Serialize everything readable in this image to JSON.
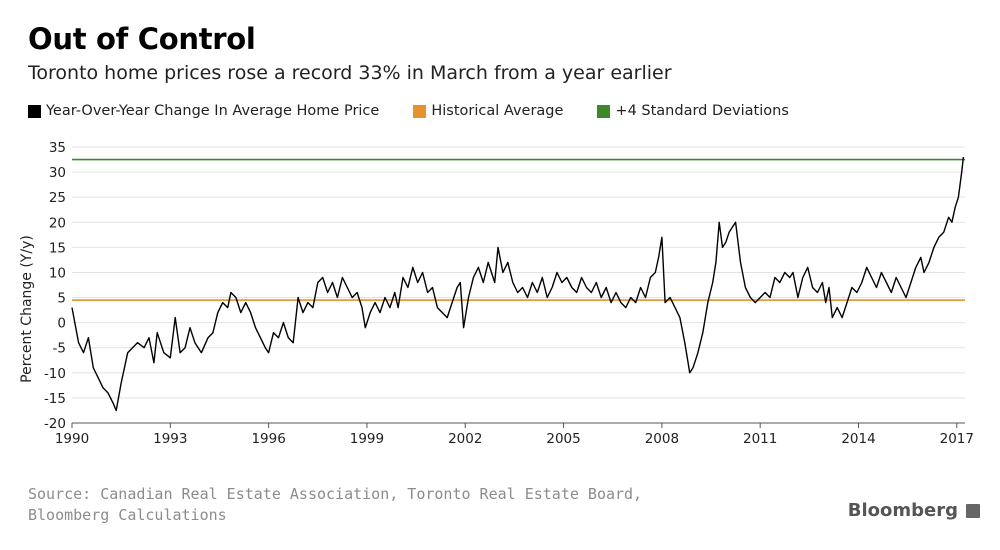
{
  "header": {
    "title": "Out of Control",
    "subtitle": "Toronto home prices rose a record 33% in March from a year earlier"
  },
  "legend": [
    {
      "label": "Year-Over-Year Change In Average Home Price",
      "color": "#000000"
    },
    {
      "label": "Historical Average",
      "color": "#e8902a"
    },
    {
      "label": "+4 Standard Deviations",
      "color": "#3a8a2a"
    }
  ],
  "footer": {
    "source_line1": "Source: Canadian Real Estate Association, Toronto Real Estate Board,",
    "source_line2": "Bloomberg Calculations",
    "brand": "Bloomberg"
  },
  "chart_data": {
    "type": "line",
    "ylabel": "Percent Change (Y/y)",
    "xlabel": "",
    "xlim": [
      1990,
      2017.25
    ],
    "ylim": [
      -20,
      35
    ],
    "x_ticks": [
      1990,
      1993,
      1996,
      1999,
      2002,
      2005,
      2008,
      2011,
      2014,
      2017
    ],
    "y_ticks": [
      -20,
      -15,
      -10,
      -5,
      0,
      5,
      10,
      15,
      20,
      25,
      30,
      35
    ],
    "grid": "horizontal",
    "reference_lines": [
      {
        "name": "Historical Average",
        "value": 4.5,
        "color": "#e8902a"
      },
      {
        "name": "+4 Standard Deviations",
        "value": 32.5,
        "color": "#3a8a2a"
      }
    ],
    "series": [
      {
        "name": "Year-Over-Year Change In Average Home Price",
        "color": "#000000",
        "points": [
          [
            1990.0,
            3
          ],
          [
            1990.2,
            -4
          ],
          [
            1990.35,
            -6
          ],
          [
            1990.5,
            -3
          ],
          [
            1990.65,
            -9
          ],
          [
            1990.8,
            -11
          ],
          [
            1990.95,
            -13
          ],
          [
            1991.1,
            -14
          ],
          [
            1991.25,
            -16
          ],
          [
            1991.35,
            -17.5
          ],
          [
            1991.5,
            -12
          ],
          [
            1991.7,
            -6
          ],
          [
            1991.85,
            -5
          ],
          [
            1992.0,
            -4
          ],
          [
            1992.2,
            -5
          ],
          [
            1992.35,
            -3
          ],
          [
            1992.5,
            -8
          ],
          [
            1992.6,
            -2
          ],
          [
            1992.8,
            -6
          ],
          [
            1993.0,
            -7
          ],
          [
            1993.15,
            1
          ],
          [
            1993.3,
            -6
          ],
          [
            1993.45,
            -5
          ],
          [
            1993.6,
            -1
          ],
          [
            1993.75,
            -4
          ],
          [
            1993.95,
            -6
          ],
          [
            1994.15,
            -3
          ],
          [
            1994.3,
            -2
          ],
          [
            1994.45,
            2
          ],
          [
            1994.6,
            4
          ],
          [
            1994.75,
            3
          ],
          [
            1994.85,
            6
          ],
          [
            1995.0,
            5
          ],
          [
            1995.15,
            2
          ],
          [
            1995.3,
            4
          ],
          [
            1995.45,
            2
          ],
          [
            1995.6,
            -1
          ],
          [
            1995.75,
            -3
          ],
          [
            1995.9,
            -5
          ],
          [
            1996.0,
            -6
          ],
          [
            1996.15,
            -2
          ],
          [
            1996.3,
            -3
          ],
          [
            1996.45,
            0
          ],
          [
            1996.6,
            -3
          ],
          [
            1996.75,
            -4
          ],
          [
            1996.9,
            5
          ],
          [
            1997.05,
            2
          ],
          [
            1997.2,
            4
          ],
          [
            1997.35,
            3
          ],
          [
            1997.5,
            8
          ],
          [
            1997.65,
            9
          ],
          [
            1997.8,
            6
          ],
          [
            1997.95,
            8
          ],
          [
            1998.1,
            5
          ],
          [
            1998.25,
            9
          ],
          [
            1998.4,
            7
          ],
          [
            1998.55,
            5
          ],
          [
            1998.7,
            6
          ],
          [
            1998.85,
            3
          ],
          [
            1998.95,
            -1
          ],
          [
            1999.1,
            2
          ],
          [
            1999.25,
            4
          ],
          [
            1999.4,
            2
          ],
          [
            1999.55,
            5
          ],
          [
            1999.7,
            3
          ],
          [
            1999.85,
            6
          ],
          [
            1999.95,
            3
          ],
          [
            2000.1,
            9
          ],
          [
            2000.25,
            7
          ],
          [
            2000.4,
            11
          ],
          [
            2000.55,
            8
          ],
          [
            2000.7,
            10
          ],
          [
            2000.85,
            6
          ],
          [
            2001.0,
            7
          ],
          [
            2001.15,
            3
          ],
          [
            2001.3,
            2
          ],
          [
            2001.45,
            1
          ],
          [
            2001.6,
            4
          ],
          [
            2001.75,
            7
          ],
          [
            2001.85,
            8
          ],
          [
            2001.95,
            -1
          ],
          [
            2002.1,
            5
          ],
          [
            2002.25,
            9
          ],
          [
            2002.4,
            11
          ],
          [
            2002.55,
            8
          ],
          [
            2002.7,
            12
          ],
          [
            2002.8,
            10
          ],
          [
            2002.9,
            8
          ],
          [
            2003.0,
            15
          ],
          [
            2003.15,
            10
          ],
          [
            2003.3,
            12
          ],
          [
            2003.45,
            8
          ],
          [
            2003.6,
            6
          ],
          [
            2003.75,
            7
          ],
          [
            2003.9,
            5
          ],
          [
            2004.05,
            8
          ],
          [
            2004.2,
            6
          ],
          [
            2004.35,
            9
          ],
          [
            2004.5,
            5
          ],
          [
            2004.65,
            7
          ],
          [
            2004.8,
            10
          ],
          [
            2004.95,
            8
          ],
          [
            2005.1,
            9
          ],
          [
            2005.25,
            7
          ],
          [
            2005.4,
            6
          ],
          [
            2005.55,
            9
          ],
          [
            2005.7,
            7
          ],
          [
            2005.85,
            6
          ],
          [
            2006.0,
            8
          ],
          [
            2006.15,
            5
          ],
          [
            2006.3,
            7
          ],
          [
            2006.45,
            4
          ],
          [
            2006.6,
            6
          ],
          [
            2006.75,
            4
          ],
          [
            2006.9,
            3
          ],
          [
            2007.05,
            5
          ],
          [
            2007.2,
            4
          ],
          [
            2007.35,
            7
          ],
          [
            2007.5,
            5
          ],
          [
            2007.65,
            9
          ],
          [
            2007.8,
            10
          ],
          [
            2007.9,
            13
          ],
          [
            2008.0,
            17
          ],
          [
            2008.1,
            4
          ],
          [
            2008.25,
            5
          ],
          [
            2008.4,
            3
          ],
          [
            2008.55,
            1
          ],
          [
            2008.7,
            -4
          ],
          [
            2008.8,
            -8
          ],
          [
            2008.85,
            -10
          ],
          [
            2008.95,
            -9
          ],
          [
            2009.1,
            -6
          ],
          [
            2009.25,
            -2
          ],
          [
            2009.4,
            4
          ],
          [
            2009.55,
            8
          ],
          [
            2009.65,
            12
          ],
          [
            2009.75,
            20
          ],
          [
            2009.85,
            15
          ],
          [
            2009.95,
            16
          ],
          [
            2010.05,
            18
          ],
          [
            2010.15,
            19
          ],
          [
            2010.25,
            20
          ],
          [
            2010.4,
            12
          ],
          [
            2010.55,
            7
          ],
          [
            2010.7,
            5
          ],
          [
            2010.85,
            4
          ],
          [
            2011.0,
            5
          ],
          [
            2011.15,
            6
          ],
          [
            2011.3,
            5
          ],
          [
            2011.45,
            9
          ],
          [
            2011.6,
            8
          ],
          [
            2011.75,
            10
          ],
          [
            2011.9,
            9
          ],
          [
            2012.0,
            10
          ],
          [
            2012.15,
            5
          ],
          [
            2012.3,
            9
          ],
          [
            2012.45,
            11
          ],
          [
            2012.6,
            7
          ],
          [
            2012.75,
            6
          ],
          [
            2012.9,
            8
          ],
          [
            2013.0,
            4
          ],
          [
            2013.1,
            7
          ],
          [
            2013.2,
            1
          ],
          [
            2013.35,
            3
          ],
          [
            2013.5,
            1
          ],
          [
            2013.65,
            4
          ],
          [
            2013.8,
            7
          ],
          [
            2013.95,
            6
          ],
          [
            2014.1,
            8
          ],
          [
            2014.25,
            11
          ],
          [
            2014.4,
            9
          ],
          [
            2014.55,
            7
          ],
          [
            2014.7,
            10
          ],
          [
            2014.85,
            8
          ],
          [
            2015.0,
            6
          ],
          [
            2015.15,
            9
          ],
          [
            2015.3,
            7
          ],
          [
            2015.45,
            5
          ],
          [
            2015.6,
            8
          ],
          [
            2015.75,
            11
          ],
          [
            2015.9,
            13
          ],
          [
            2016.0,
            10
          ],
          [
            2016.15,
            12
          ],
          [
            2016.3,
            15
          ],
          [
            2016.45,
            17
          ],
          [
            2016.6,
            18
          ],
          [
            2016.75,
            21
          ],
          [
            2016.85,
            20
          ],
          [
            2016.95,
            23
          ],
          [
            2017.05,
            25
          ],
          [
            2017.15,
            30
          ],
          [
            2017.2,
            33
          ]
        ]
      }
    ]
  }
}
